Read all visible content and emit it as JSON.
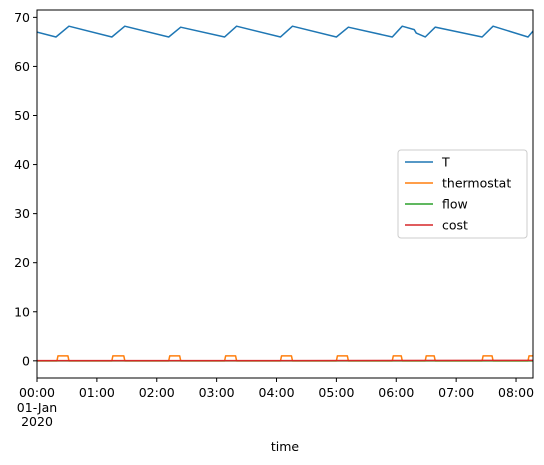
{
  "chart_data": {
    "type": "line",
    "xlabel": "time",
    "ylabel": "",
    "title": "",
    "xlim": [
      "00:00",
      "08:17"
    ],
    "ylim": [
      -3.5,
      71.5
    ],
    "y_ticks": [
      0,
      10,
      20,
      30,
      40,
      50,
      60,
      70
    ],
    "x_ticks": [
      {
        "at": "00:00",
        "label": "00:00",
        "sub": [
          "01-Jan",
          "2020"
        ]
      },
      {
        "at": "01:00",
        "label": "01:00"
      },
      {
        "at": "02:00",
        "label": "02:00"
      },
      {
        "at": "03:00",
        "label": "03:00"
      },
      {
        "at": "04:00",
        "label": "04:00"
      },
      {
        "at": "05:00",
        "label": "05:00"
      },
      {
        "at": "06:00",
        "label": "06:00"
      },
      {
        "at": "07:00",
        "label": "07:00"
      },
      {
        "at": "08:00",
        "label": "08:00"
      }
    ],
    "legend": {
      "placement": "center-right"
    },
    "series": [
      {
        "name": "T",
        "color": "#1f77b4",
        "points": [
          [
            "00:00",
            67.0
          ],
          [
            "00:19",
            66.0
          ],
          [
            "00:32",
            68.2
          ],
          [
            "01:15",
            66.0
          ],
          [
            "01:28",
            68.2
          ],
          [
            "02:12",
            66.0
          ],
          [
            "02:24",
            68.0
          ],
          [
            "03:08",
            66.0
          ],
          [
            "03:20",
            68.2
          ],
          [
            "04:04",
            66.0
          ],
          [
            "04:16",
            68.2
          ],
          [
            "05:00",
            66.0
          ],
          [
            "05:12",
            68.0
          ],
          [
            "05:56",
            66.0
          ],
          [
            "06:06",
            68.2
          ],
          [
            "06:18",
            67.5
          ],
          [
            "06:20",
            66.8
          ],
          [
            "06:29",
            66.0
          ],
          [
            "06:39",
            68.0
          ],
          [
            "07:26",
            66.0
          ],
          [
            "07:37",
            68.2
          ],
          [
            "08:12",
            66.0
          ],
          [
            "08:17",
            67.2
          ]
        ]
      },
      {
        "name": "thermostat",
        "color": "#ff7f0e",
        "points": [
          [
            "00:00",
            0
          ],
          [
            "00:20",
            0
          ],
          [
            "00:21",
            1
          ],
          [
            "00:31",
            1
          ],
          [
            "00:32",
            0
          ],
          [
            "01:15",
            0
          ],
          [
            "01:16",
            1
          ],
          [
            "01:27",
            1
          ],
          [
            "01:28",
            0
          ],
          [
            "02:12",
            0
          ],
          [
            "02:13",
            1
          ],
          [
            "02:23",
            1
          ],
          [
            "02:24",
            0
          ],
          [
            "03:08",
            0
          ],
          [
            "03:09",
            1
          ],
          [
            "03:19",
            1
          ],
          [
            "03:20",
            0
          ],
          [
            "04:04",
            0
          ],
          [
            "04:05",
            1
          ],
          [
            "04:15",
            1
          ],
          [
            "04:16",
            0
          ],
          [
            "05:00",
            0
          ],
          [
            "05:01",
            1
          ],
          [
            "05:11",
            1
          ],
          [
            "05:12",
            0
          ],
          [
            "05:56",
            0
          ],
          [
            "05:57",
            1
          ],
          [
            "06:05",
            1
          ],
          [
            "06:06",
            0
          ],
          [
            "06:29",
            0
          ],
          [
            "06:30",
            1
          ],
          [
            "06:38",
            1
          ],
          [
            "06:39",
            0
          ],
          [
            "07:26",
            0
          ],
          [
            "07:27",
            1
          ],
          [
            "07:36",
            1
          ],
          [
            "07:37",
            0
          ],
          [
            "08:12",
            0
          ],
          [
            "08:13",
            1
          ],
          [
            "08:17",
            1
          ]
        ]
      },
      {
        "name": "flow",
        "color": "#2ca02c",
        "points": [
          [
            "00:00",
            0
          ],
          [
            "08:17",
            0
          ]
        ]
      },
      {
        "name": "cost",
        "color": "#d62728",
        "points": [
          [
            "00:00",
            0.05
          ],
          [
            "04:00",
            0.05
          ],
          [
            "08:17",
            0.1
          ]
        ]
      }
    ]
  }
}
